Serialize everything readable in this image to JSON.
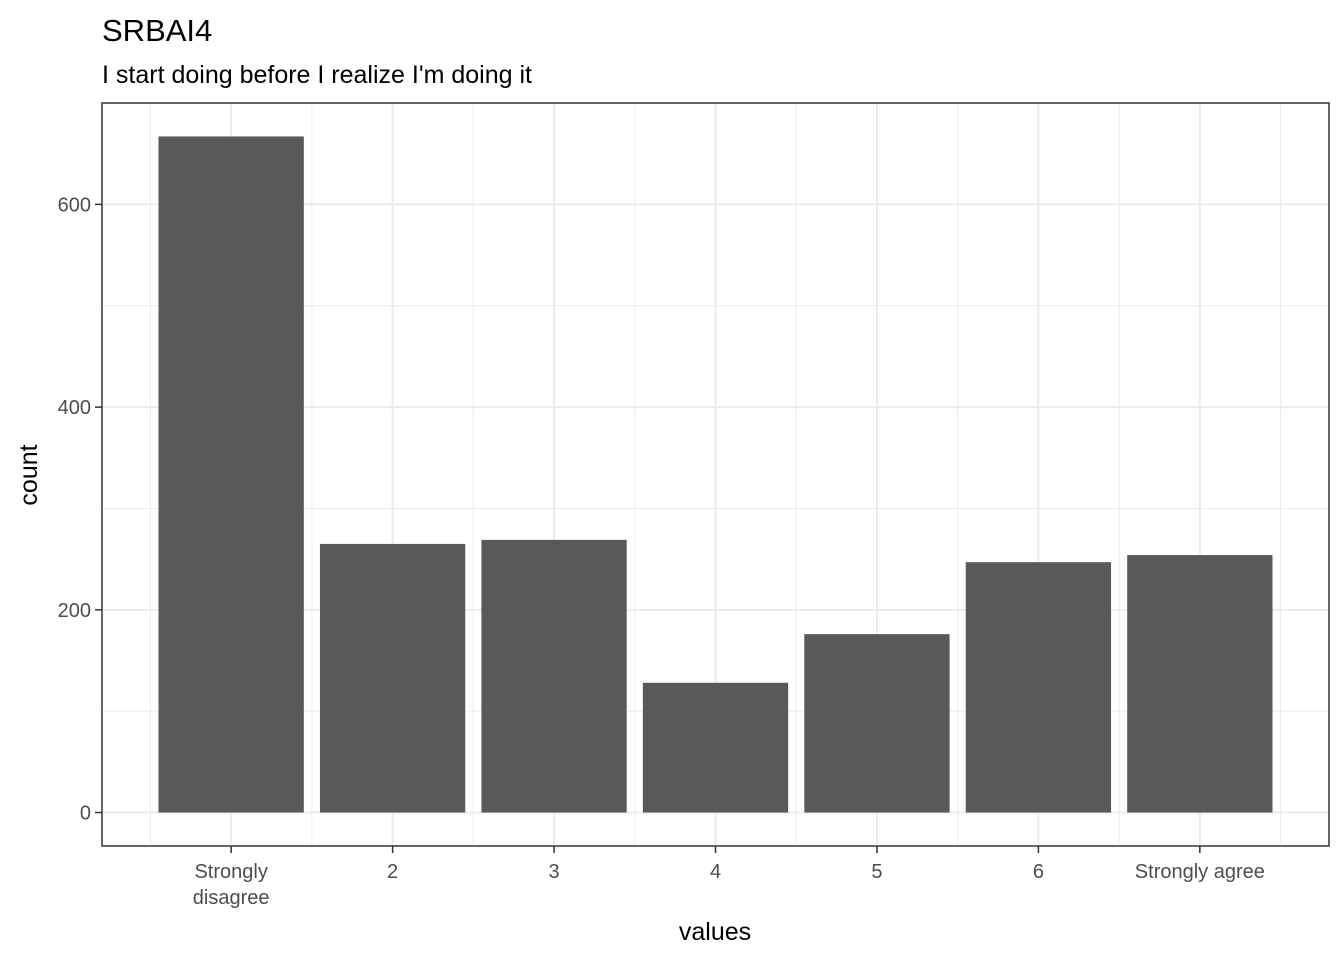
{
  "chart_data": {
    "type": "bar",
    "title": "SRBAI4",
    "subtitle": "I start doing before I realize I'm doing it",
    "xlabel": "values",
    "ylabel": "count",
    "categories": [
      [
        "Strongly",
        "disagree"
      ],
      [
        "2"
      ],
      [
        "3"
      ],
      [
        "4"
      ],
      [
        "5"
      ],
      [
        "6"
      ],
      [
        "Strongly agree"
      ]
    ],
    "values": [
      667,
      265,
      269,
      128,
      176,
      247,
      254
    ],
    "ylim": [
      -33,
      700
    ],
    "yticks": [
      0,
      200,
      400,
      600
    ],
    "grid": true,
    "bar_color": "#595959",
    "grid_color": "#ebebeb",
    "panel_border_color": "#333333"
  }
}
